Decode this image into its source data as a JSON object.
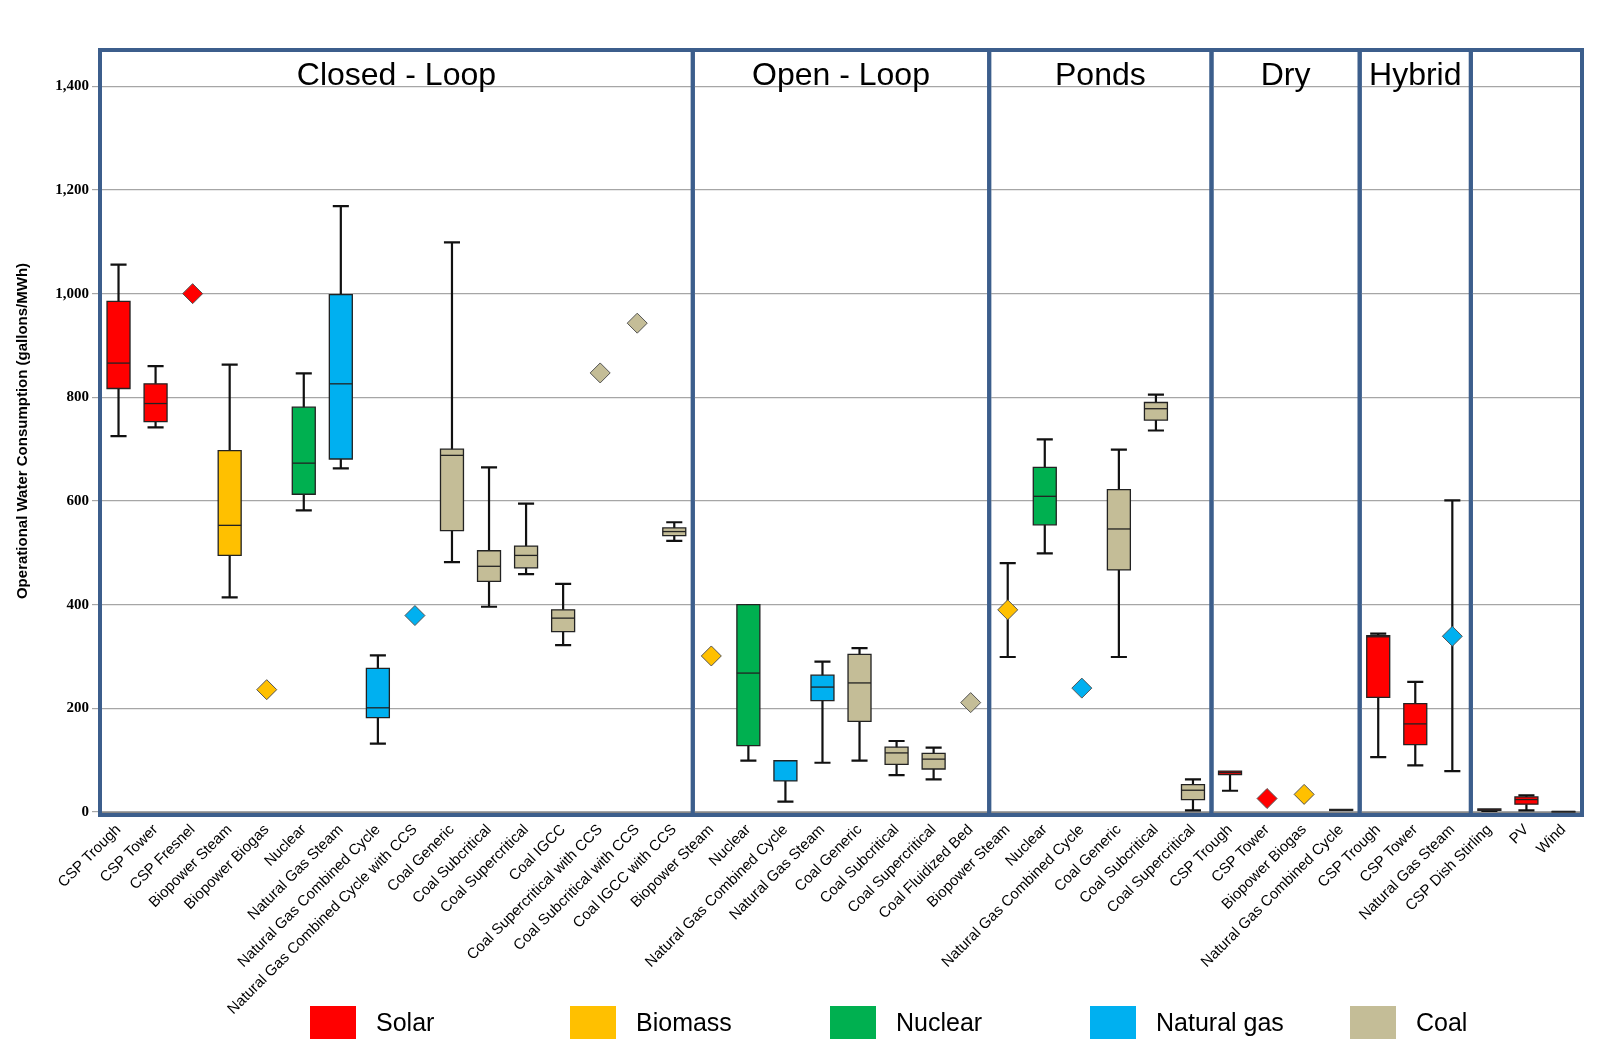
{
  "chart_data": [
    {
      "type": "box",
      "title": "Closed - Loop",
      "ylabel": "Operational Water Consumption (gallons/MWh)",
      "categories": [
        "CSP Trough",
        "CSP Tower",
        "CSP Fresnel",
        "Biopower Steam",
        "Biopower Biogas",
        "Nuclear",
        "Natural Gas Steam",
        "Natural Gas Combined Cycle",
        "Natural Gas Combined Cycle with CCS",
        "Coal Generic",
        "Coal Subcritical",
        "Coal Supercritical",
        "Coal IGCC",
        "Coal Supercritical with CCS",
        "Coal Subcritical with CCS",
        "Coal IGCC with CCS"
      ],
      "series": [
        {
          "name": "Solar",
          "color": "#ff0000",
          "boxes": [
            {
              "low": 725,
              "q1": 817,
              "median": 866,
              "q3": 985,
              "high": 1056
            },
            {
              "low": 742,
              "q1": 753,
              "median": 788,
              "q3": 826,
              "high": 860
            },
            null,
            null,
            null,
            null,
            null,
            null,
            null,
            null,
            null,
            null,
            null,
            null,
            null,
            null
          ]
        },
        {
          "name": "Biomass",
          "color": "#ffc000",
          "boxes": [
            null,
            null,
            null,
            {
              "low": 414,
              "q1": 495,
              "median": 553,
              "q3": 697,
              "high": 863
            },
            null,
            null,
            null,
            null,
            null,
            null,
            null,
            null,
            null,
            null,
            null,
            null
          ]
        },
        {
          "name": "Nuclear",
          "color": "#00b050",
          "boxes": [
            null,
            null,
            null,
            null,
            null,
            {
              "low": 582,
              "q1": 613,
              "median": 673,
              "q3": 781,
              "high": 846
            },
            null,
            null,
            null,
            null,
            null,
            null,
            null,
            null,
            null,
            null
          ]
        },
        {
          "name": "Natural gas",
          "color": "#00b0f0",
          "boxes": [
            null,
            null,
            null,
            null,
            null,
            null,
            {
              "low": 663,
              "q1": 681,
              "median": 826,
              "q3": 998,
              "high": 1169
            },
            {
              "low": 132,
              "q1": 182,
              "median": 201,
              "q3": 277,
              "high": 302
            },
            null,
            null,
            null,
            null,
            null,
            null,
            null,
            null
          ]
        },
        {
          "name": "Coal",
          "color": "#c4bd97",
          "boxes": [
            null,
            null,
            null,
            null,
            null,
            null,
            null,
            null,
            null,
            {
              "low": 482,
              "q1": 543,
              "median": 688,
              "q3": 700,
              "high": 1099
            },
            {
              "low": 396,
              "q1": 445,
              "median": 474,
              "q3": 504,
              "high": 665
            },
            {
              "low": 459,
              "q1": 471,
              "median": 495,
              "q3": 513,
              "high": 595
            },
            {
              "low": 322,
              "q1": 348,
              "median": 374,
              "q3": 390,
              "high": 440
            },
            null,
            null,
            {
              "low": 523,
              "q1": 533,
              "median": 541,
              "q3": 548,
              "high": 559
            }
          ]
        },
        {
          "type": "scatter",
          "color": "#ff0000",
          "x": [
            "CSP Fresnel"
          ],
          "values": [
            1000
          ]
        },
        {
          "type": "scatter",
          "color": "#ffc000",
          "x": [
            "Biopower Biogas"
          ],
          "values": [
            236
          ]
        },
        {
          "type": "scatter",
          "color": "#00b0f0",
          "x": [
            "Natural Gas Combined Cycle with CCS"
          ],
          "values": [
            379
          ]
        },
        {
          "type": "scatter",
          "color": "#c4bd97",
          "x": [
            "Coal Supercritical with CCS",
            "Coal Subcritical with CCS"
          ],
          "values": [
            847,
            943
          ]
        }
      ],
      "ylim": [
        0,
        1470
      ],
      "yticks": [
        0,
        200,
        400,
        600,
        800,
        {
          "value": 1000,
          "label": "1,000"
        },
        {
          "value": 1200,
          "label": "1,200"
        },
        {
          "value": 1400,
          "label": "1,400"
        }
      ],
      "grid": "y",
      "legend": "bottom",
      "marker": "diamond"
    },
    {
      "type": "box",
      "title": "Open - Loop",
      "categories": [
        "Biopower Steam",
        "Nuclear",
        "Natural Gas Combined Cycle",
        "Natural Gas Steam",
        "Coal Generic",
        "Coal Subcritical",
        "Coal Supercritical",
        "Coal Fluidized Bed"
      ],
      "series": [
        {
          "type": "scatter",
          "color": "#ffc000",
          "x": [
            "Biopower Steam"
          ],
          "values": [
            301
          ]
        },
        {
          "color": "#00b050",
          "boxes": [
            null,
            {
              "low": 99,
              "q1": 128,
              "median": 268,
              "q3": 400,
              "high": 400
            },
            null,
            null,
            null,
            null,
            null,
            null
          ]
        },
        {
          "color": "#00b0f0",
          "boxes": [
            null,
            null,
            {
              "low": 20,
              "q1": 60,
              "median": 99,
              "q3": 99,
              "high": 99
            },
            {
              "low": 95,
              "q1": 215,
              "median": 241,
              "q3": 264,
              "high": 290
            },
            null,
            null,
            null,
            null
          ]
        },
        {
          "color": "#c4bd97",
          "boxes": [
            null,
            null,
            null,
            null,
            {
              "low": 99,
              "q1": 175,
              "median": 249,
              "q3": 304,
              "high": 316
            },
            {
              "low": 71,
              "q1": 92,
              "median": 114,
              "q3": 125,
              "high": 137
            },
            {
              "low": 63,
              "q1": 83,
              "median": 102,
              "q3": 113,
              "high": 124
            },
            null
          ]
        },
        {
          "type": "scatter",
          "color": "#c4bd97",
          "x": [
            "Coal Fluidized Bed"
          ],
          "values": [
            211
          ]
        }
      ],
      "ylim": [
        0,
        1470
      ],
      "yticks": [
        0,
        200,
        400,
        600,
        800,
        1000,
        1200,
        1400
      ],
      "tick_labels": "x",
      "grid": "y",
      "marker": "diamond"
    },
    {
      "type": "box",
      "title": "Ponds",
      "categories": [
        "Biopower Steam",
        "Nuclear",
        "Natural Gas Combined Cycle",
        "Coal Generic",
        "Coal Subcritical",
        "Coal Supercritical"
      ],
      "series": [
        {
          "type": "scatter",
          "color": "#ffc000",
          "x": [
            "Biopower Steam"
          ],
          "values": [
            390
          ],
          "errors": [
            [
              299,
              480
            ]
          ]
        },
        {
          "color": "#00b050",
          "boxes": [
            null,
            {
              "low": 499,
              "q1": 554,
              "median": 609,
              "q3": 665,
              "high": 719
            },
            null,
            null,
            null,
            null
          ]
        },
        {
          "type": "scatter",
          "color": "#00b0f0",
          "x": [
            "Natural Gas Combined Cycle"
          ],
          "values": [
            239
          ]
        },
        {
          "color": "#c4bd97",
          "boxes": [
            null,
            null,
            null,
            {
              "low": 299,
              "q1": 467,
              "median": 546,
              "q3": 622,
              "high": 699
            },
            {
              "low": 736,
              "q1": 756,
              "median": 778,
              "q3": 790,
              "high": 805
            },
            {
              "low": 3,
              "q1": 24,
              "median": 42,
              "q3": 53,
              "high": 63
            }
          ]
        }
      ],
      "ylim": [
        0,
        1470
      ],
      "yticks": [
        0,
        200,
        400,
        600,
        800,
        1000,
        1200,
        1400
      ],
      "tick_labels": "x",
      "grid": "y",
      "marker": "diamond"
    },
    {
      "type": "box",
      "title": "Dry",
      "categories": [
        "CSP Trough",
        "CSP Tower",
        "Biopower Biogas",
        "Natural Gas Combined Cycle"
      ],
      "series": [
        {
          "color": "#ff0000",
          "boxes": [
            {
              "low": 41,
              "q1": 72,
              "median": 76,
              "q3": 79,
              "high": 79
            },
            null,
            null,
            null
          ]
        },
        {
          "type": "scatter",
          "color": "#ff0000",
          "x": [
            "CSP Tower"
          ],
          "values": [
            26
          ]
        },
        {
          "type": "scatter",
          "color": "#ffc000",
          "x": [
            "Biopower Biogas"
          ],
          "values": [
            34
          ]
        },
        {
          "color": "#00b0f0",
          "boxes": [
            null,
            null,
            null,
            {
              "low": 3,
              "q1": 3,
              "median": 4,
              "q3": 5,
              "high": 5
            }
          ]
        }
      ],
      "ylim": [
        0,
        1470
      ],
      "yticks": [
        0,
        200,
        400,
        600,
        800,
        1000,
        1200,
        1400
      ],
      "tick_labels": "x",
      "grid": "y",
      "marker": "diamond"
    },
    {
      "type": "box",
      "title": "Hybrid",
      "categories": [
        "CSP Trough",
        "CSP Tower",
        "Natural Gas Steam"
      ],
      "series": [
        {
          "color": "#ff0000",
          "boxes": [
            {
              "low": 106,
              "q1": 221,
              "median": 338,
              "q3": 340,
              "high": 344
            },
            {
              "low": 90,
              "q1": 130,
              "median": 170,
              "q3": 209,
              "high": 251
            },
            null
          ]
        },
        {
          "type": "scatter",
          "color": "#00b0f0",
          "x": [
            "Natural Gas Steam"
          ],
          "values": [
            339
          ],
          "errors": [
            [
              79,
              601
            ]
          ]
        }
      ],
      "ylim": [
        0,
        1470
      ],
      "yticks": [
        0,
        200,
        400,
        600,
        800,
        1000,
        1200,
        1400
      ],
      "tick_labels": "x",
      "grid": "y",
      "marker": "diamond"
    },
    {
      "type": "box",
      "categories": [
        "CSP Dish Stirling",
        "PV",
        "Wind"
      ],
      "series": [
        {
          "color": "#ff0000",
          "boxes": [
            {
              "low": 2,
              "q1": 3,
              "median": 4,
              "q3": 6,
              "high": 6
            },
            {
              "low": 3,
              "q1": 15,
              "median": 24,
              "q3": 29,
              "high": 32
            },
            null
          ]
        },
        {
          "color": "#404040",
          "boxes": [
            null,
            null,
            {
              "low": 0,
              "q1": 0,
              "median": 1,
              "q3": 1,
              "high": 1
            }
          ]
        }
      ],
      "ylim": [
        0,
        1470
      ],
      "yticks": [
        0,
        200,
        400,
        600,
        800,
        1000,
        1200,
        1400
      ],
      "tick_labels": "x",
      "grid": "y"
    }
  ]
}
